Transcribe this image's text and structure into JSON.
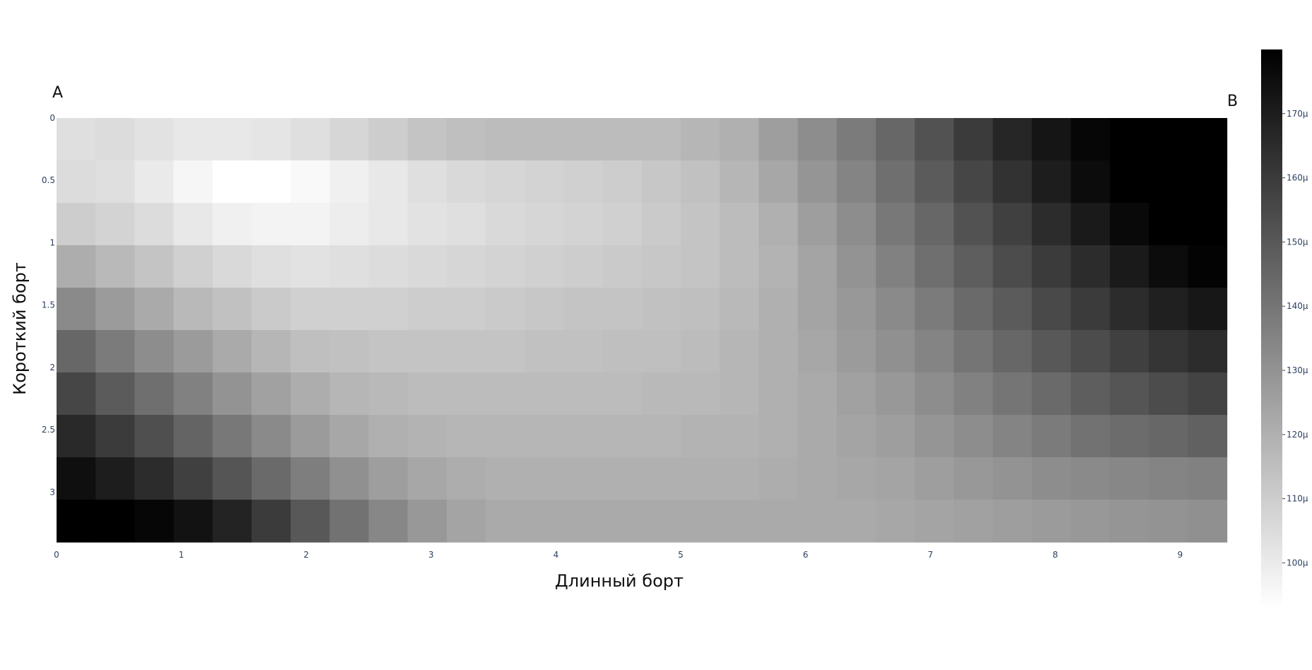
{
  "chart_data": {
    "type": "heatmap",
    "title": "",
    "xlabel": "Длинный борт",
    "ylabel": "Короткий борт",
    "corner_labels": {
      "top_left": "A",
      "top_right": "B"
    },
    "x_ticks": [
      "0",
      "1",
      "2",
      "3",
      "4",
      "5",
      "6",
      "7",
      "8",
      "9"
    ],
    "y_ticks": [
      "0",
      "0.5",
      "1",
      "1.5",
      "2",
      "2.5",
      "3"
    ],
    "colorbar_ticks": [
      "170μ",
      "160μ",
      "150μ",
      "140μ",
      "130μ",
      "120μ",
      "110μ",
      "100μ"
    ],
    "colorscale": [
      "#ffffff",
      "#000000"
    ],
    "zrange": [
      93,
      180
    ],
    "x_range": [
      0,
      9.4
    ],
    "y_range": [
      0,
      3.4
    ],
    "x_step": 0.3125,
    "y_step": 0.34,
    "values": [
      [
        104,
        105,
        103,
        101,
        101,
        102,
        104,
        107,
        110,
        113,
        115,
        116,
        116,
        116,
        116,
        116,
        118,
        120,
        126,
        132,
        138,
        145,
        152,
        160,
        167,
        173,
        178,
        183,
        188,
        192
      ],
      [
        105,
        104,
        100,
        96,
        93,
        93,
        95,
        98,
        101,
        104,
        106,
        107,
        108,
        109,
        110,
        112,
        114,
        118,
        123,
        129,
        135,
        142,
        149,
        156,
        163,
        170,
        176,
        182,
        187,
        190
      ],
      [
        110,
        108,
        105,
        101,
        98,
        97,
        97,
        99,
        101,
        103,
        104,
        106,
        107,
        108,
        109,
        111,
        113,
        116,
        120,
        126,
        132,
        139,
        145,
        152,
        158,
        165,
        171,
        177,
        182,
        185
      ],
      [
        121,
        117,
        113,
        109,
        106,
        104,
        103,
        104,
        105,
        106,
        107,
        108,
        109,
        110,
        111,
        112,
        113,
        116,
        119,
        124,
        130,
        136,
        142,
        148,
        154,
        160,
        165,
        171,
        176,
        179
      ],
      [
        133,
        127,
        122,
        117,
        114,
        111,
        109,
        109,
        109,
        110,
        110,
        111,
        112,
        113,
        113,
        114,
        115,
        117,
        120,
        124,
        128,
        133,
        138,
        144,
        149,
        155,
        160,
        165,
        169,
        172
      ],
      [
        145,
        138,
        132,
        127,
        122,
        118,
        115,
        114,
        113,
        113,
        113,
        113,
        114,
        114,
        115,
        115,
        116,
        118,
        120,
        123,
        127,
        131,
        135,
        140,
        145,
        150,
        154,
        158,
        162,
        165
      ],
      [
        156,
        149,
        142,
        136,
        130,
        125,
        121,
        118,
        117,
        116,
        116,
        116,
        116,
        116,
        116,
        117,
        117,
        118,
        120,
        122,
        125,
        128,
        132,
        136,
        140,
        144,
        148,
        151,
        154,
        157
      ],
      [
        166,
        160,
        153,
        146,
        139,
        133,
        127,
        123,
        120,
        119,
        118,
        118,
        118,
        118,
        118,
        118,
        119,
        119,
        120,
        122,
        124,
        126,
        129,
        132,
        135,
        138,
        141,
        143,
        145,
        147
      ],
      [
        175,
        170,
        165,
        158,
        151,
        144,
        137,
        131,
        126,
        123,
        121,
        120,
        120,
        120,
        120,
        120,
        120,
        120,
        121,
        122,
        123,
        124,
        126,
        128,
        130,
        132,
        133,
        134,
        135,
        136
      ],
      [
        182,
        180,
        178,
        174,
        168,
        160,
        150,
        141,
        134,
        128,
        124,
        122,
        122,
        122,
        122,
        122,
        122,
        122,
        122,
        122,
        122,
        123,
        124,
        125,
        126,
        127,
        128,
        129,
        130,
        131
      ]
    ]
  }
}
